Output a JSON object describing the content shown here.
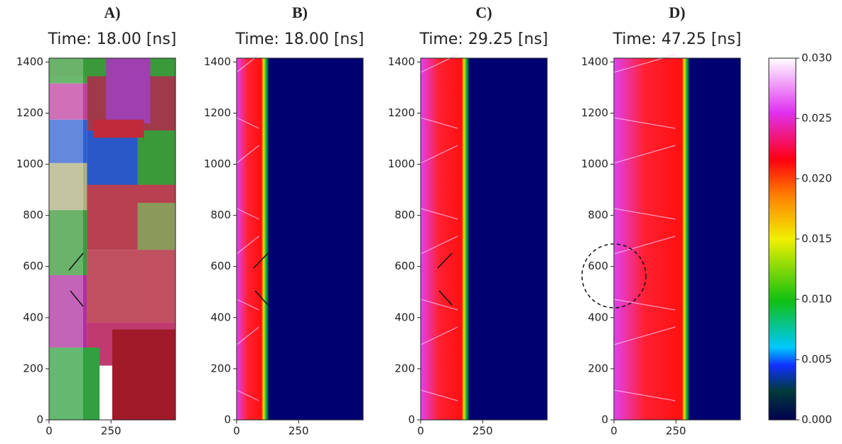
{
  "chart_data": [
    {
      "type": "image",
      "label": "A)",
      "title": "Time: 18.00 [ns]",
      "xlim": [
        0,
        510
      ],
      "ylim": [
        0,
        1415
      ],
      "xticks": [
        0,
        250
      ],
      "yticks": [
        0,
        200,
        400,
        600,
        800,
        1000,
        1200,
        1400
      ]
    },
    {
      "type": "image",
      "label": "B)",
      "title": "Time: 18.00 [ns]",
      "xlim": [
        0,
        510
      ],
      "ylim": [
        0,
        1415
      ],
      "xticks": [
        0,
        250
      ],
      "yticks": [
        0,
        200,
        400,
        600,
        800,
        1000,
        1200,
        1400
      ]
    },
    {
      "type": "image",
      "label": "C)",
      "title": "Time: 29.25 [ns]",
      "xlim": [
        0,
        510
      ],
      "ylim": [
        0,
        1415
      ],
      "xticks": [
        0,
        250
      ],
      "yticks": [
        0,
        200,
        400,
        600,
        800,
        1000,
        1200,
        1400
      ]
    },
    {
      "type": "image",
      "label": "D)",
      "title": "Time: 47.25 [ns]",
      "xlim": [
        0,
        510
      ],
      "ylim": [
        0,
        1415
      ],
      "xticks": [
        0,
        250
      ],
      "yticks": [
        0,
        200,
        400,
        600,
        800,
        1000,
        1200,
        1400
      ]
    },
    {
      "type": "colorbar",
      "ylim": [
        0,
        0.03
      ],
      "yticks": [
        {
          "value": 0,
          "label": "0.000"
        },
        0.005,
        {
          "value": 0.01,
          "label": "0.010"
        },
        0.015,
        {
          "value": 0.02,
          "label": "0.020"
        },
        0.025,
        {
          "value": 0.03,
          "label": "0.030"
        }
      ]
    }
  ]
}
